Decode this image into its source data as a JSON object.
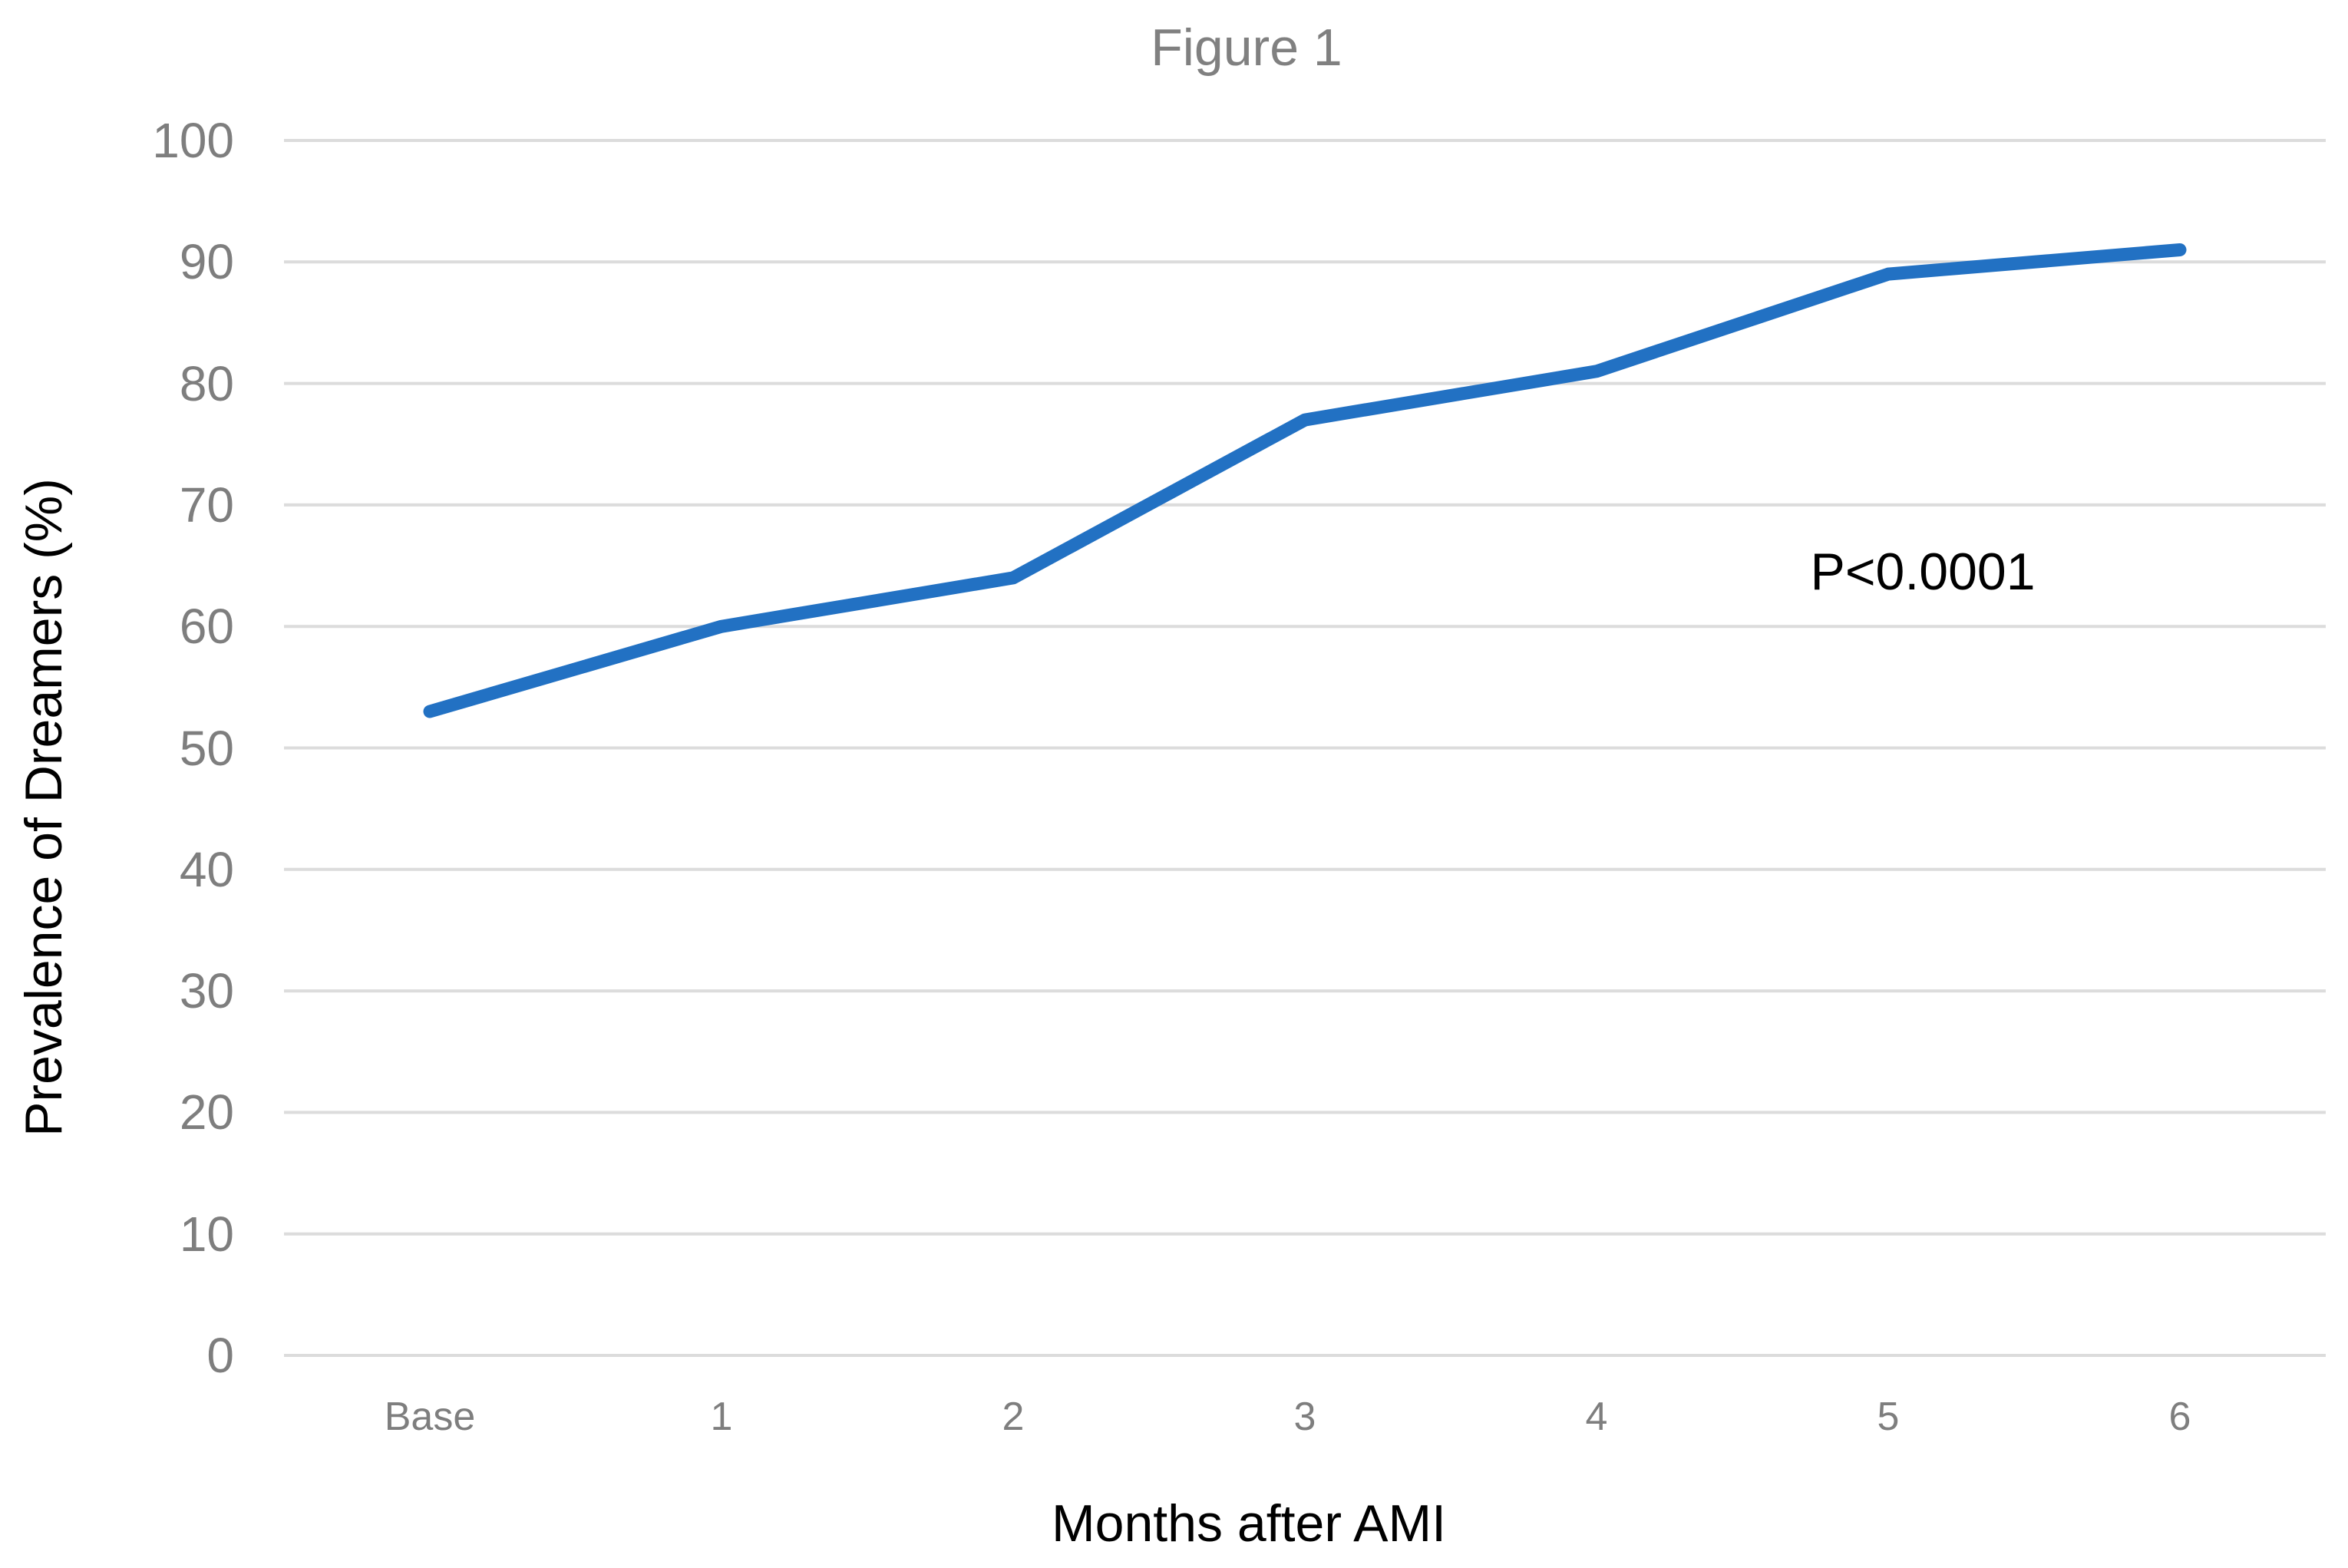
{
  "figure": {
    "title": "Figure 1",
    "annotation": "P<0.0001"
  },
  "chart_data": {
    "type": "line",
    "title": "Figure 1",
    "categories": [
      "Base",
      "1",
      "2",
      "3",
      "4",
      "5",
      "6"
    ],
    "series": [
      {
        "name": "Prevalence of Dreamers",
        "values": [
          53,
          60,
          64,
          77,
          81,
          89,
          91
        ]
      }
    ],
    "xlabel": "Months after AMI",
    "ylabel": "Prevalence of Dreamers (%)",
    "ylim": [
      0,
      100
    ],
    "ytick_step": 10,
    "ytick_labels": [
      "0",
      "10",
      "20",
      "30",
      "40",
      "50",
      "60",
      "70",
      "80",
      "90",
      "100"
    ],
    "annotation": "P<0.0001",
    "grid": true,
    "legend_position": "none",
    "colors": {
      "line": "#2271c3",
      "gridline": "#dcdcdc",
      "tick_label": "#7e7e7e",
      "title": "#808080",
      "axis_title": "#000000",
      "annotation": "#000000",
      "background": "#ffffff"
    }
  }
}
